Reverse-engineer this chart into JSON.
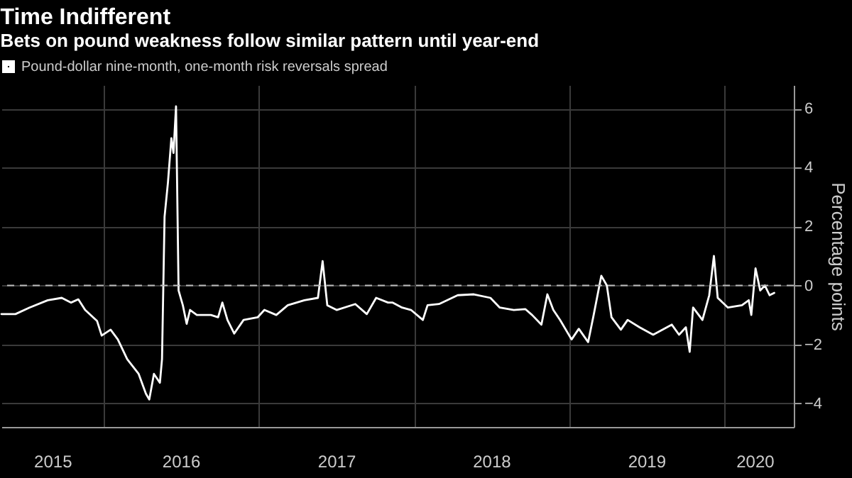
{
  "chart_data": {
    "type": "line",
    "title": "Time Indifferent",
    "subtitle": "Bets on pound weakness follow similar pattern until year-end",
    "ylabel": "Percentage points",
    "x": [
      "2015-05-06",
      "2015-06-08",
      "2015-07-11",
      "2015-08-23",
      "2015-09-25",
      "2015-10-17",
      "2015-11-03",
      "2015-11-19",
      "2015-12-17",
      "2015-12-28",
      "2016-01-18",
      "2016-02-04",
      "2016-02-26",
      "2016-03-24",
      "2016-04-10",
      "2016-04-18",
      "2016-04-29",
      "2016-05-13",
      "2016-05-18",
      "2016-05-24",
      "2016-06-01",
      "2016-06-09",
      "2016-06-14",
      "2016-06-20",
      "2016-06-26",
      "2016-07-06",
      "2016-07-15",
      "2016-07-23",
      "2016-08-08",
      "2016-09-10",
      "2016-09-27",
      "2016-10-07",
      "2016-10-19",
      "2016-11-04",
      "2016-11-26",
      "2016-12-29",
      "2017-01-14",
      "2017-02-11",
      "2017-03-10",
      "2017-04-18",
      "2017-05-20",
      "2017-05-31",
      "2017-06-11",
      "2017-07-03",
      "2017-08-16",
      "2017-09-12",
      "2017-10-04",
      "2017-11-01",
      "2017-11-12",
      "2017-12-04",
      "2017-12-25",
      "2018-01-22",
      "2018-02-02",
      "2018-03-01",
      "2018-04-14",
      "2018-05-22",
      "2018-06-30",
      "2018-07-22",
      "2018-08-24",
      "2018-09-20",
      "2018-10-06",
      "2018-10-28",
      "2018-11-11",
      "2018-11-25",
      "2018-12-11",
      "2019-01-07",
      "2019-01-24",
      "2019-02-15",
      "2019-02-28",
      "2019-03-18",
      "2019-03-31",
      "2019-04-11",
      "2019-05-03",
      "2019-05-19",
      "2019-06-16",
      "2019-07-18",
      "2019-08-31",
      "2019-09-17",
      "2019-10-03",
      "2019-10-12",
      "2019-10-20",
      "2019-11-11",
      "2019-11-27",
      "2019-12-08",
      "2019-12-17",
      "2020-01-10",
      "2020-02-12",
      "2020-02-28",
      "2020-03-05",
      "2020-03-15",
      "2020-03-26",
      "2020-04-06",
      "2020-04-17",
      "2020-04-28"
    ],
    "series": [
      {
        "name": "Pound-dollar nine-month, one-month risk reversals spread",
        "color": "#ffffff",
        "values": [
          -0.97,
          -0.97,
          -0.75,
          -0.5,
          -0.42,
          -0.58,
          -0.47,
          -0.83,
          -1.2,
          -1.7,
          -1.5,
          -1.83,
          -2.5,
          -3.0,
          -3.67,
          -3.87,
          -3.0,
          -3.3,
          -2.5,
          2.33,
          3.5,
          5.0,
          4.5,
          6.08,
          -0.17,
          -0.67,
          -1.3,
          -0.83,
          -1.0,
          -1.0,
          -1.08,
          -0.58,
          -1.17,
          -1.63,
          -1.17,
          -1.08,
          -0.83,
          -1.0,
          -0.67,
          -0.5,
          -0.42,
          0.83,
          -0.67,
          -0.83,
          -0.63,
          -0.97,
          -0.42,
          -0.58,
          -0.58,
          -0.75,
          -0.83,
          -1.17,
          -0.67,
          -0.63,
          -0.33,
          -0.3,
          -0.42,
          -0.75,
          -0.83,
          -0.8,
          -1.0,
          -1.33,
          -0.3,
          -0.83,
          -1.17,
          -1.83,
          -1.47,
          -1.92,
          -1.0,
          0.33,
          0,
          -1.08,
          -1.5,
          -1.17,
          -1.42,
          -1.67,
          -1.33,
          -1.67,
          -1.42,
          -2.25,
          -0.75,
          -1.17,
          -0.33,
          1.0,
          -0.42,
          -0.75,
          -0.67,
          -0.5,
          -1.0,
          0.58,
          -0.17,
          0,
          -0.33,
          -0.25
        ]
      }
    ],
    "xlim": [
      "2015-05-06",
      "2020-06-13"
    ],
    "xticks": [
      {
        "value": "2015-09-03",
        "label": "2015"
      },
      {
        "value": "2016-01-01",
        "label": null
      },
      {
        "value": "2016-07-01",
        "label": "2016"
      },
      {
        "value": "2017-01-01",
        "label": null
      },
      {
        "value": "2017-07-02",
        "label": "2017"
      },
      {
        "value": "2018-01-01",
        "label": null
      },
      {
        "value": "2018-07-02",
        "label": "2018"
      },
      {
        "value": "2019-01-01",
        "label": null
      },
      {
        "value": "2019-07-02",
        "label": "2019"
      },
      {
        "value": "2020-01-01",
        "label": null
      },
      {
        "value": "2020-03-13",
        "label": "2020"
      }
    ],
    "ylim": [
      -4.8,
      6.8
    ],
    "yticks": [
      -4,
      -2,
      0,
      2,
      4,
      6
    ],
    "ref_lines": [
      {
        "axis": "y",
        "value": 0,
        "color": "#bbbbbb",
        "line_style": "dashed"
      }
    ],
    "grid": true,
    "legend": "top left"
  }
}
